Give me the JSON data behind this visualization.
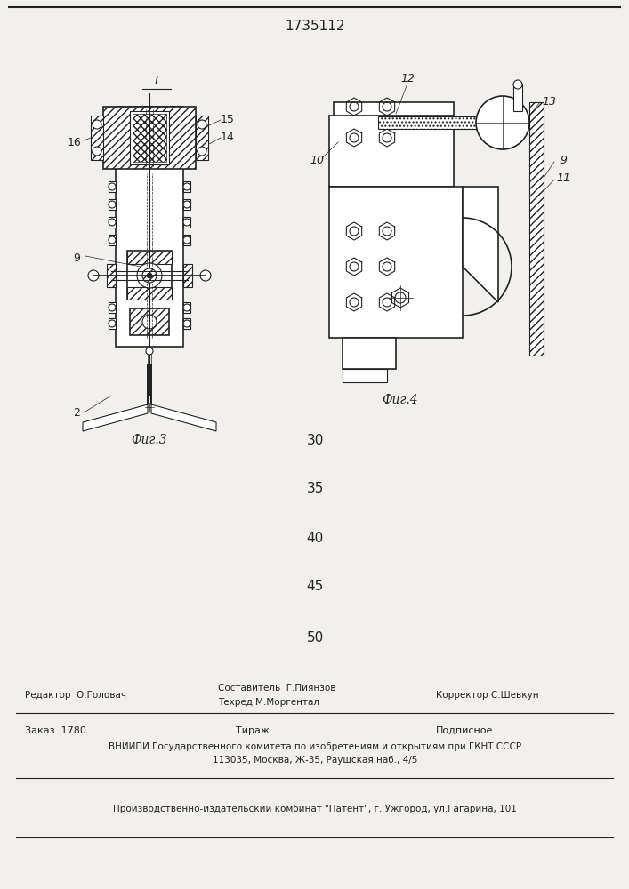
{
  "title": "1735112",
  "fig3_label": "Фиг.3",
  "fig4_label": "Фиг.4",
  "numbers_center": [
    30,
    35,
    40,
    45,
    50
  ],
  "editor_line": "Редактор  О.Головач",
  "composer_line": "Составитель  Г.Пиянзов",
  "techred_line": "Техред М.Моргентал",
  "corrector_line": "Корректор С.Шевкун",
  "order_line": "Заказ  1780",
  "tirazh_line": "Тираж",
  "podpisnoe_line": "Подписное",
  "vniipи_line": "ВНИИПИ Государственного комитета по изобретениям и открытиям при ГКНТ СССР",
  "address_line": "113035, Москва, Ж-35, Раушская наб., 4/5",
  "factory_line": "Производственно-издательский комбинат \"Патент\", г. Ужгород, ул.Гагарина, 101",
  "bg_color": "#f2f0ec",
  "line_color": "#222222"
}
